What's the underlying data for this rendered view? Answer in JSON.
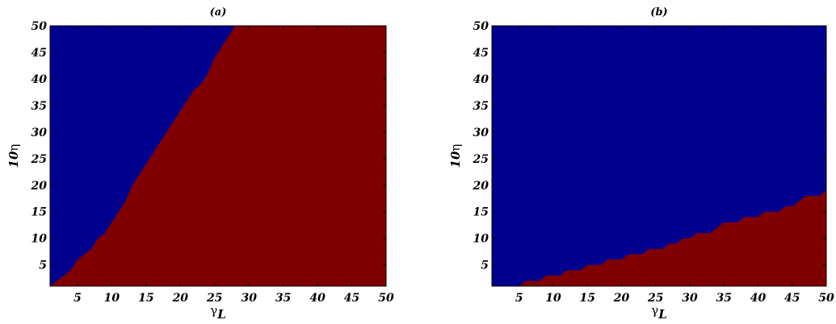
{
  "chart_data": [
    {
      "type": "heatmap",
      "title": "(a)",
      "xlabel": "γ",
      "xlabel_sub": "L",
      "ylabel_prefix": "10",
      "ylabel_symbol": "η",
      "xlim": [
        1,
        50
      ],
      "ylim": [
        1,
        50
      ],
      "xticks": [
        5,
        10,
        15,
        20,
        25,
        30,
        35,
        40,
        45,
        50
      ],
      "yticks": [
        5,
        10,
        15,
        20,
        25,
        30,
        35,
        40,
        45,
        50
      ],
      "colors": {
        "above": "#00008f",
        "below": "#800000"
      },
      "boundary": [
        [
          1,
          1
        ],
        [
          2,
          2
        ],
        [
          3,
          3
        ],
        [
          4,
          4
        ],
        [
          5,
          6
        ],
        [
          6,
          7
        ],
        [
          7,
          8
        ],
        [
          8,
          10
        ],
        [
          9,
          11
        ],
        [
          10,
          13
        ],
        [
          11,
          15
        ],
        [
          12,
          17
        ],
        [
          13,
          20
        ],
        [
          14,
          22
        ],
        [
          15,
          24
        ],
        [
          16,
          26
        ],
        [
          17,
          28
        ],
        [
          18,
          30
        ],
        [
          19,
          32
        ],
        [
          20,
          34
        ],
        [
          21,
          36
        ],
        [
          22,
          38
        ],
        [
          23,
          39
        ],
        [
          24,
          41
        ],
        [
          25,
          44
        ],
        [
          26,
          46
        ],
        [
          27,
          48
        ],
        [
          28,
          50
        ],
        [
          50,
          50
        ]
      ]
    },
    {
      "type": "heatmap",
      "title": "(b)",
      "xlabel": "γ",
      "xlabel_sub": "L",
      "ylabel_prefix": "10",
      "ylabel_symbol": "η",
      "xlim": [
        1,
        50
      ],
      "ylim": [
        1,
        50
      ],
      "xticks": [
        5,
        10,
        15,
        20,
        25,
        30,
        35,
        40,
        45,
        50
      ],
      "yticks": [
        5,
        10,
        15,
        20,
        25,
        30,
        35,
        40,
        45,
        50
      ],
      "colors": {
        "above": "#00008f",
        "below": "#800000"
      },
      "boundary": [
        [
          1,
          1
        ],
        [
          5,
          1
        ],
        [
          6,
          2
        ],
        [
          8,
          2
        ],
        [
          9,
          3
        ],
        [
          11,
          3
        ],
        [
          12,
          4
        ],
        [
          14,
          4
        ],
        [
          15,
          5
        ],
        [
          17,
          5
        ],
        [
          18,
          6
        ],
        [
          20,
          6
        ],
        [
          21,
          7
        ],
        [
          23,
          7
        ],
        [
          24,
          8
        ],
        [
          26,
          8
        ],
        [
          27,
          9
        ],
        [
          28,
          9
        ],
        [
          29,
          10
        ],
        [
          30,
          10
        ],
        [
          31,
          11
        ],
        [
          33,
          11
        ],
        [
          34,
          12
        ],
        [
          35,
          13
        ],
        [
          37,
          13
        ],
        [
          38,
          14
        ],
        [
          40,
          14
        ],
        [
          41,
          15
        ],
        [
          43,
          15
        ],
        [
          44,
          16
        ],
        [
          45,
          16
        ],
        [
          46,
          17
        ],
        [
          47,
          18
        ],
        [
          49,
          18
        ],
        [
          50,
          19
        ]
      ]
    }
  ]
}
